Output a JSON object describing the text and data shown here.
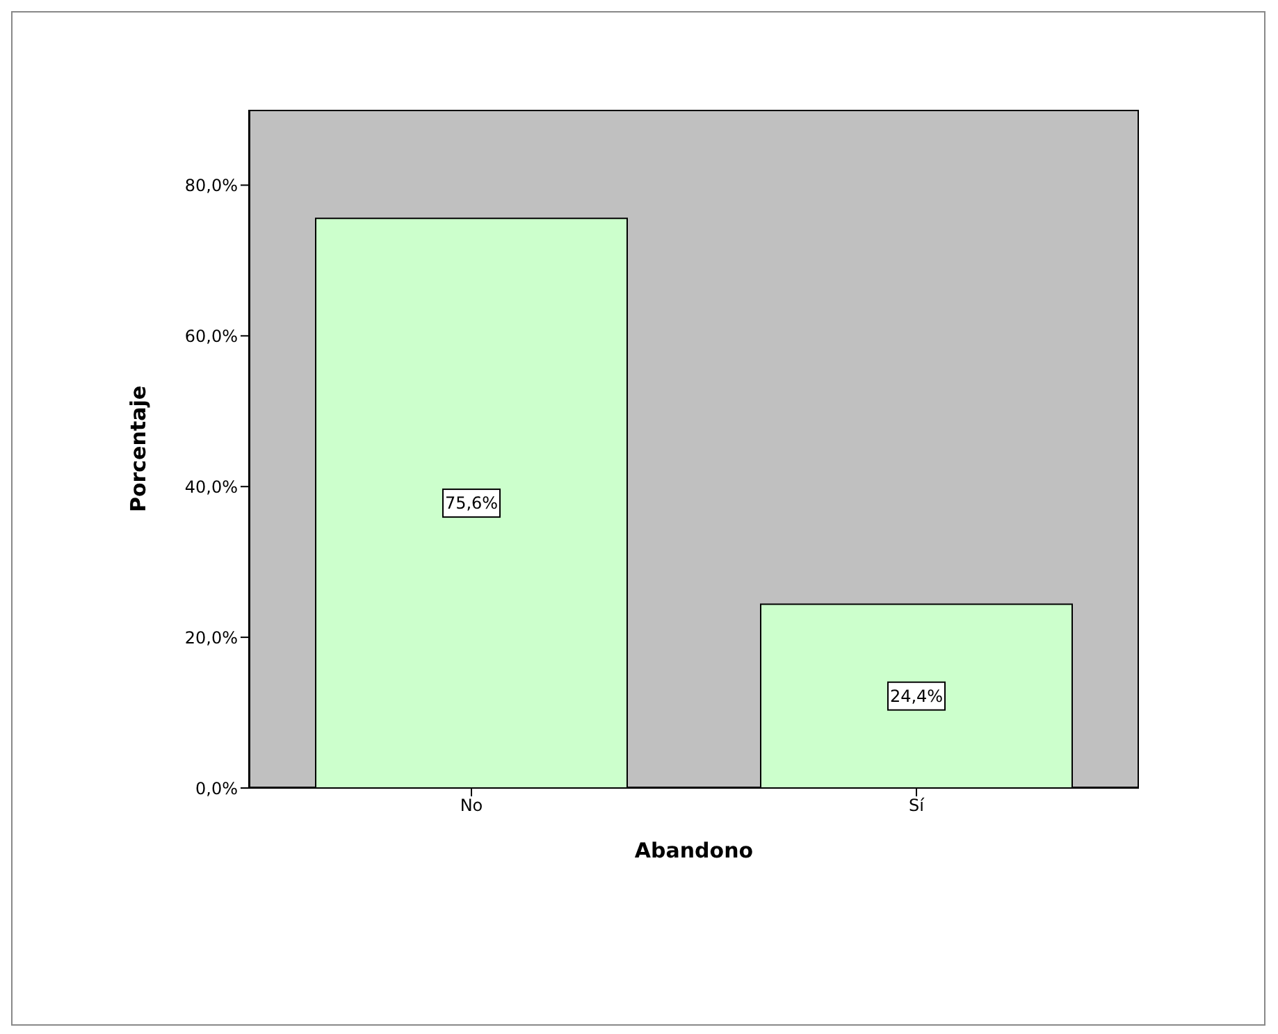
{
  "chart_data": {
    "type": "bar",
    "categories": [
      "No",
      "Sí"
    ],
    "values": [
      75.6,
      24.4
    ],
    "color": "#ccffcc",
    "value_labels": [
      "75,6%",
      "24,4%"
    ],
    "xlabel": "Abandono",
    "ylabel": "Porcentaje",
    "ylim": [
      0,
      90
    ],
    "yticks": [
      {
        "value": 0,
        "label": "0,0%"
      },
      {
        "value": 20,
        "label": "20,0%"
      },
      {
        "value": 40,
        "label": "40,0%"
      },
      {
        "value": 60,
        "label": "60,0%"
      },
      {
        "value": 80,
        "label": "80,0%"
      }
    ]
  }
}
